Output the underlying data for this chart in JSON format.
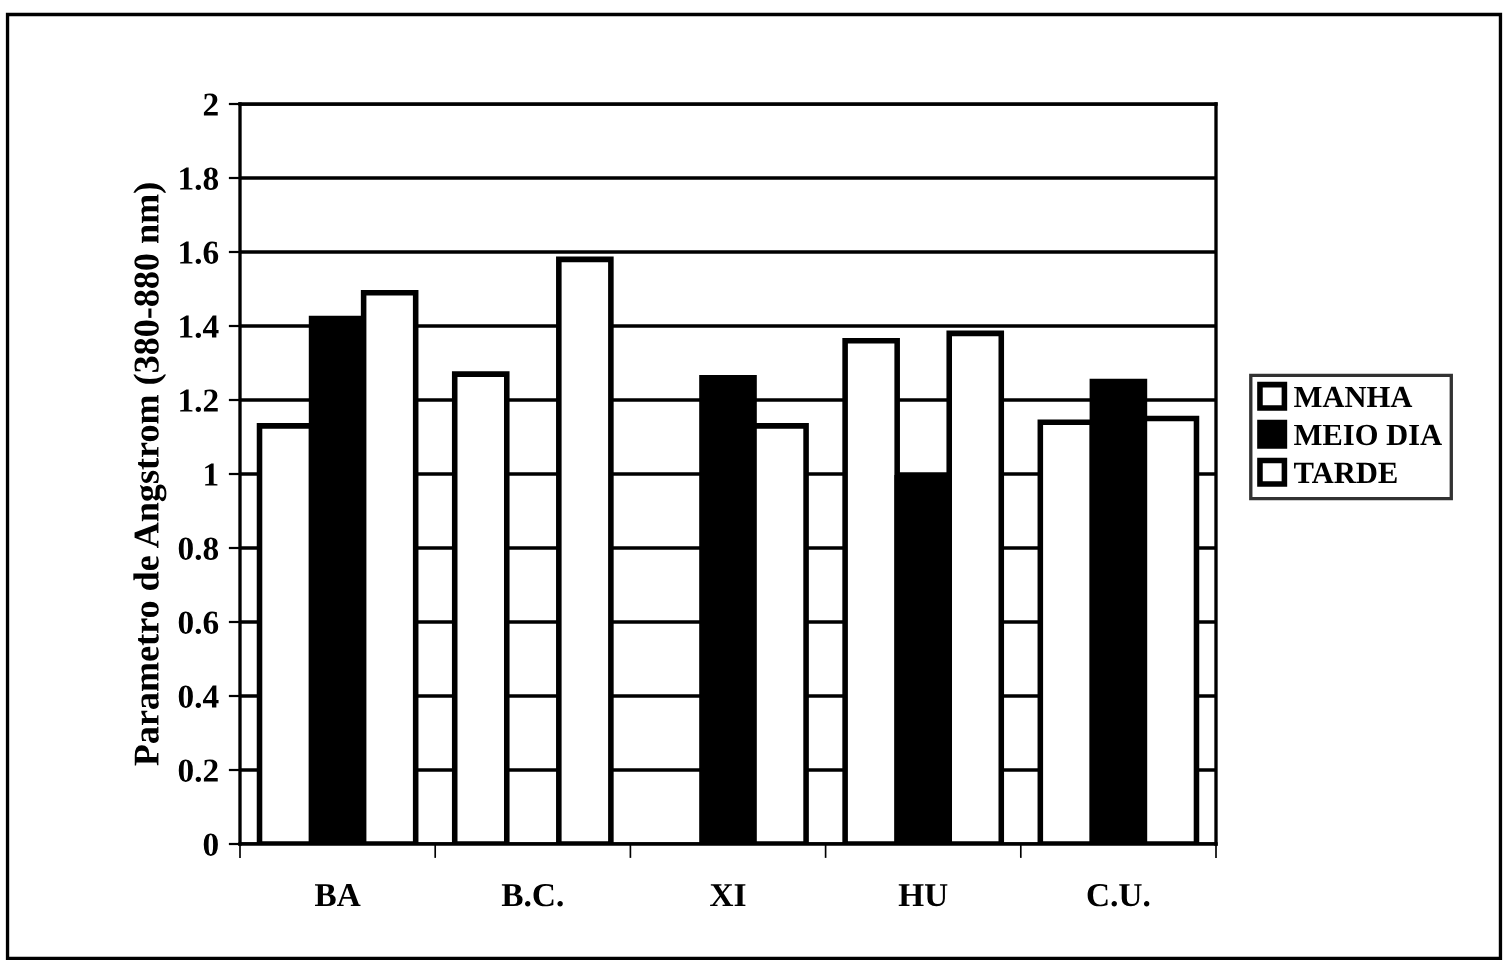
{
  "chart_data": {
    "type": "bar",
    "ylabel": "Parametro de Angstrom (380-880 nm)",
    "categories": [
      "BA",
      "B.C.",
      "XI",
      "HU",
      "C.U."
    ],
    "series": [
      {
        "name": "MANHA",
        "color": "#ffffff",
        "values": [
          1.13,
          1.27,
          null,
          1.36,
          1.14
        ]
      },
      {
        "name": "MEIO DIA",
        "color": "#000000",
        "values": [
          1.42,
          null,
          1.26,
          0.99,
          1.25
        ]
      },
      {
        "name": "TARDE",
        "color": "#ffffff",
        "values": [
          1.49,
          1.58,
          1.13,
          1.38,
          1.15
        ]
      }
    ],
    "ylim": [
      0,
      2
    ],
    "yticks": [
      0,
      0.2,
      0.4,
      0.6,
      0.8,
      1,
      1.2,
      1.4,
      1.6,
      1.8,
      2
    ],
    "grid": "y",
    "legend": "right"
  }
}
